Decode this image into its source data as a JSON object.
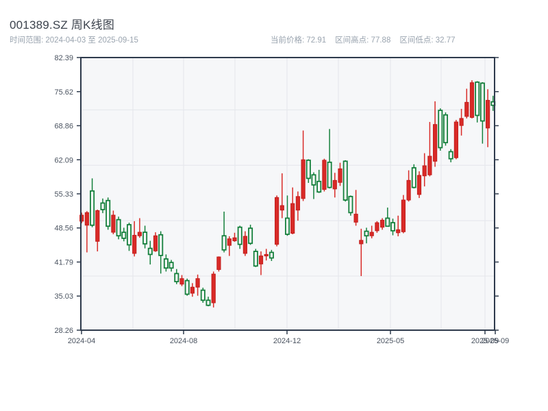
{
  "header": {
    "title": "001389.SZ 周K线图",
    "date_range": "时间范围: 2024-04-03 至 2025-09-15",
    "stats": [
      "当前价格: 72.91",
      "区间高点: 77.88",
      "区间低点: 32.77"
    ]
  },
  "chart_data": {
    "type": "candlestick",
    "title": "001389.SZ 周K线图",
    "period": "weekly",
    "date_range": {
      "start": "2024-04-03",
      "end": "2025-09-15"
    },
    "current_price": 72.91,
    "range_high": 77.88,
    "range_low": 32.77,
    "ylim": [
      28.26,
      82.39
    ],
    "y_tick_labels": [
      "82.39",
      "75.62",
      "68.86",
      "62.09",
      "55.33",
      "48.56",
      "41.79",
      "35.03",
      "28.26"
    ],
    "x_tick_labels": [
      "2024-04",
      "2024-08",
      "2024-12",
      "2025-05",
      "2025-09",
      "2025-09"
    ],
    "grid_y_values": [
      72,
      61,
      50,
      39
    ],
    "grid": true,
    "legend": "none",
    "colors": {
      "up": "#d92a27",
      "up_stroke": "#c21f1e",
      "down": "#15803c",
      "plot_bg": "#f6f7f9",
      "grid": "#e4e6eb",
      "axis": "#2e3a4c"
    },
    "candles_ohlc": [
      [
        49.9,
        51.6,
        49.5,
        51.1
      ],
      [
        49.1,
        51.9,
        43.7,
        51.6
      ],
      [
        55.9,
        58.4,
        48.7,
        49.1
      ],
      [
        45.9,
        52.2,
        43.9,
        52.0
      ],
      [
        53.5,
        54.4,
        51.5,
        52.2
      ],
      [
        54.0,
        54.6,
        48.2,
        48.9
      ],
      [
        47.7,
        52.0,
        47.3,
        51.1
      ],
      [
        50.2,
        50.8,
        46.3,
        47.0
      ],
      [
        47.7,
        48.6,
        45.9,
        46.5
      ],
      [
        49.2,
        49.6,
        44.0,
        45.2
      ],
      [
        43.5,
        49.9,
        42.9,
        47.1
      ],
      [
        47.0,
        50.5,
        46.6,
        47.7
      ],
      [
        47.7,
        49.0,
        44.5,
        45.4
      ],
      [
        44.5,
        46.0,
        41.3,
        43.3
      ],
      [
        44.0,
        47.7,
        43.8,
        47.0
      ],
      [
        47.2,
        47.9,
        39.5,
        43.1
      ],
      [
        42.4,
        43.3,
        39.9,
        40.6
      ],
      [
        41.7,
        42.2,
        39.9,
        40.6
      ],
      [
        39.5,
        40.4,
        37.4,
        37.9
      ],
      [
        37.4,
        39.2,
        37.0,
        38.5
      ],
      [
        38.1,
        38.5,
        35.1,
        35.4
      ],
      [
        35.6,
        37.6,
        34.9,
        36.8
      ],
      [
        36.8,
        39.3,
        35.1,
        38.5
      ],
      [
        36.2,
        36.7,
        33.7,
        34.2
      ],
      [
        34.2,
        34.9,
        33.0,
        33.2
      ],
      [
        33.7,
        39.9,
        32.77,
        39.4
      ],
      [
        40.3,
        42.9,
        39.9,
        42.8
      ],
      [
        47.0,
        51.8,
        43.7,
        44.2
      ],
      [
        45.1,
        46.9,
        43.0,
        46.4
      ],
      [
        46.0,
        47.6,
        45.8,
        46.6
      ],
      [
        48.7,
        49.0,
        44.4,
        45.3
      ],
      [
        43.5,
        47.9,
        43.0,
        46.9
      ],
      [
        48.5,
        49.2,
        45.2,
        45.5
      ],
      [
        43.9,
        44.4,
        40.8,
        41.0
      ],
      [
        41.4,
        43.9,
        39.2,
        43.0
      ],
      [
        43.0,
        44.4,
        42.1,
        43.3
      ],
      [
        43.7,
        44.2,
        42.0,
        42.6
      ],
      [
        45.3,
        55.0,
        44.9,
        54.6
      ],
      [
        52.1,
        59.4,
        50.5,
        53.0
      ],
      [
        50.5,
        55.0,
        47.0,
        47.3
      ],
      [
        47.5,
        56.6,
        47.3,
        53.4
      ],
      [
        52.1,
        55.8,
        50.0,
        54.8
      ],
      [
        54.4,
        67.9,
        53.9,
        62.1
      ],
      [
        62.0,
        62.2,
        57.5,
        58.4
      ],
      [
        59.1,
        59.6,
        54.3,
        57.1
      ],
      [
        57.8,
        60.1,
        55.5,
        55.7
      ],
      [
        56.2,
        62.3,
        55.8,
        62.0
      ],
      [
        61.6,
        68.2,
        56.4,
        56.6
      ],
      [
        56.3,
        59.5,
        54.6,
        58.0
      ],
      [
        57.6,
        61.5,
        56.9,
        60.3
      ],
      [
        61.8,
        62.0,
        53.8,
        54.1
      ],
      [
        54.8,
        55.0,
        51.0,
        51.6
      ],
      [
        49.7,
        56.1,
        49.0,
        51.3
      ],
      [
        45.4,
        48.4,
        39.0,
        46.1
      ],
      [
        47.9,
        48.6,
        45.5,
        47.0
      ],
      [
        47.0,
        49.0,
        46.5,
        47.7
      ],
      [
        48.0,
        49.9,
        47.6,
        49.6
      ],
      [
        48.7,
        50.5,
        48.2,
        50.1
      ],
      [
        50.5,
        52.6,
        48.8,
        48.9
      ],
      [
        49.6,
        50.4,
        47.1,
        48.0
      ],
      [
        47.6,
        51.0,
        46.9,
        48.2
      ],
      [
        47.8,
        55.1,
        47.5,
        54.1
      ],
      [
        54.1,
        60.0,
        53.8,
        58.0
      ],
      [
        60.5,
        61.2,
        56.4,
        56.6
      ],
      [
        55.2,
        59.8,
        54.5,
        59.0
      ],
      [
        58.9,
        63.4,
        56.8,
        60.9
      ],
      [
        59.1,
        69.6,
        58.8,
        62.8
      ],
      [
        61.8,
        73.7,
        60.7,
        69.1
      ],
      [
        71.9,
        72.3,
        63.9,
        64.5
      ],
      [
        71.0,
        71.5,
        64.9,
        65.5
      ],
      [
        63.7,
        64.2,
        61.6,
        62.3
      ],
      [
        62.5,
        70.0,
        62.2,
        69.6
      ],
      [
        68.9,
        72.2,
        66.9,
        70.3
      ],
      [
        70.7,
        76.2,
        70.3,
        73.5
      ],
      [
        70.5,
        77.88,
        70.3,
        77.4
      ],
      [
        77.5,
        77.7,
        69.5,
        70.9
      ],
      [
        77.3,
        77.5,
        65.3,
        69.8
      ],
      [
        68.4,
        76.1,
        64.6,
        73.9
      ],
      [
        73.6,
        74.8,
        71.8,
        72.91
      ]
    ]
  }
}
